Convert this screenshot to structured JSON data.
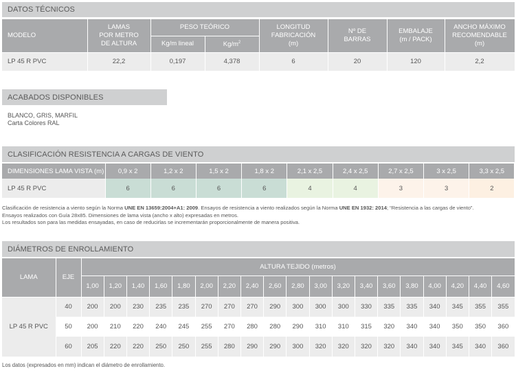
{
  "tech": {
    "title": "DATOS TÉCNICOS",
    "headers": {
      "modelo": "MODELO",
      "lamas": [
        "LAMAS",
        "POR METRO",
        "DE ALTURA"
      ],
      "peso": "PESO TEÓRICO",
      "peso_sub1": "Kg/m lineal",
      "peso_sub2": "Kg/m",
      "peso_sub2_sup": "2",
      "longitud": [
        "LONGITUD",
        "FABRICACIÓN",
        "(m)"
      ],
      "barras": [
        "Nº DE",
        "BARRAS"
      ],
      "embalaje": [
        "EMBALAJE",
        "(m / PACK)"
      ],
      "ancho": [
        "ANCHO MÁXIMO",
        "RECOMENDABLE",
        "(m)"
      ]
    },
    "row": [
      "LP 45 R PVC",
      "22,2",
      "0,197",
      "4,378",
      "6",
      "20",
      "120",
      "2,2"
    ]
  },
  "finishes": {
    "title": "ACABADOS DISPONIBLES",
    "line1": "BLANCO, GRIS, MARFIL",
    "line2": "Carta Colores RAL"
  },
  "wind": {
    "title": "CLASIFICACIÓN RESISTENCIA A CARGAS DE VIENTO",
    "header_label": "DIMENSIONES LAMA VISTA (m)",
    "dims": [
      "0,9 x 2",
      "1,2 x 2",
      "1,5 x 2",
      "1,8 x 2",
      "2,1 x 2,5",
      "2,4 x 2,5",
      "2,7 x 2,5",
      "3 x 2,5",
      "3,3 x 2,5"
    ],
    "model": "LP 45 R PVC",
    "classes": [
      "6",
      "6",
      "6",
      "6",
      "4",
      "4",
      "3",
      "3",
      "2"
    ],
    "class_colors": [
      "#c9ddd5",
      "#c9ddd5",
      "#c9ddd5",
      "#c9ddd5",
      "#e9f3e1",
      "#e9f3e1",
      "#fdf3ea",
      "#fdf3ea",
      "#fdf0e2"
    ],
    "note": {
      "p1a": "Clasificación de resistencia a viento según la Norma ",
      "p1b": "UNE EN 13659:2004+A1: 2009",
      "p1c": ". Ensayos de resistencia a viento realizados según la Norma ",
      "p1d": "UNE EN 1932: 2014",
      "p1e": "; “Resistencia a las cargas de viento”.",
      "p2": "Ensayos realizados con Guía 28x85. Dimensiones de lama vista  (ancho x alto) expresadas en metros.",
      "p3": "Los resultados son para las medidas ensayadas, en caso de reducirlas se incrementarán proporcionalmente de manera positiva."
    }
  },
  "roll": {
    "title": "DIÁMETROS DE ENROLLAMIENTO",
    "lama": "LAMA",
    "eje": "EJE",
    "altura": "ALTURA TEJIDO (metros)",
    "heights": [
      "1,00",
      "1,20",
      "1,40",
      "1,60",
      "1,80",
      "2,00",
      "2,20",
      "2,40",
      "2,60",
      "2,80",
      "3,00",
      "3,20",
      "3,40",
      "3,60",
      "3,80",
      "4,00",
      "4,20",
      "4,40",
      "4,60"
    ],
    "model": "LP 45 R PVC",
    "rows": [
      {
        "eje": "40",
        "values": [
          "200",
          "200",
          "230",
          "235",
          "235",
          "270",
          "270",
          "270",
          "290",
          "300",
          "300",
          "300",
          "330",
          "335",
          "335",
          "340",
          "345",
          "355",
          "355"
        ]
      },
      {
        "eje": "50",
        "values": [
          "200",
          "210",
          "220",
          "240",
          "245",
          "255",
          "270",
          "280",
          "280",
          "290",
          "310",
          "310",
          "315",
          "320",
          "340",
          "340",
          "350",
          "350",
          "360"
        ]
      },
      {
        "eje": "60",
        "values": [
          "205",
          "220",
          "220",
          "250",
          "250",
          "255",
          "280",
          "290",
          "290",
          "300",
          "320",
          "320",
          "320",
          "320",
          "340",
          "340",
          "345",
          "340",
          "360"
        ]
      }
    ],
    "note": "Los datos (expresados en mm) indican el diámetro de enrollamiento."
  }
}
